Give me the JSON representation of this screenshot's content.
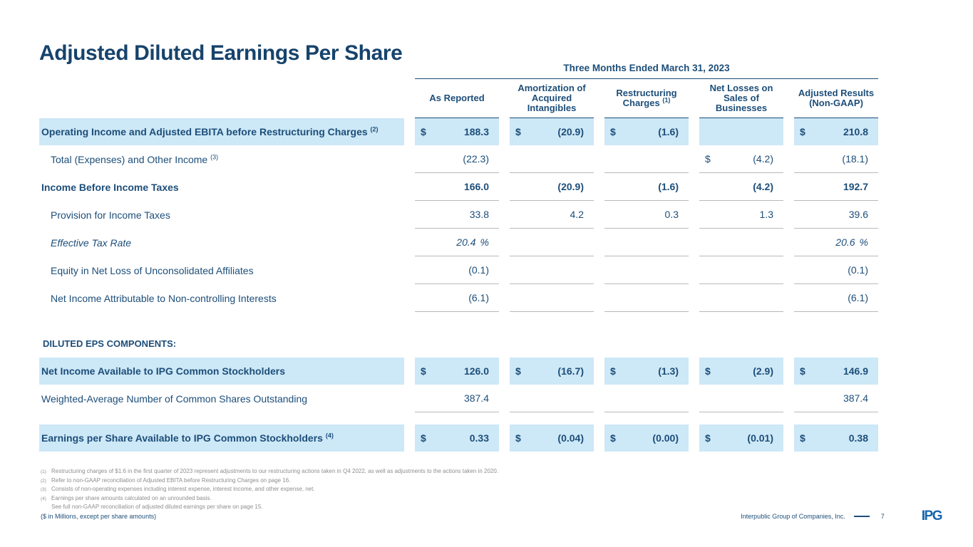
{
  "slide": {
    "title": "Adjusted Diluted Earnings Per Share"
  },
  "table": {
    "period_header": "Three Months Ended March 31, 2023",
    "columns": [
      {
        "label": "As Reported",
        "sup": ""
      },
      {
        "label": "Amortization of Acquired Intangibles",
        "sup": ""
      },
      {
        "label": "Restructuring Charges",
        "sup": "(1)"
      },
      {
        "label": "Net Losses on Sales of Businesses",
        "sup": ""
      },
      {
        "label": "Adjusted Results (Non-GAAP)",
        "sup": ""
      }
    ],
    "rows": [
      {
        "type": "data",
        "label": "Operating Income and Adjusted EBITA before Restructuring Charges",
        "sup": "(2)",
        "indent": false,
        "bold": true,
        "italic": false,
        "highlight": true,
        "underline": false,
        "cells": [
          {
            "d": "$",
            "v": "188.3"
          },
          {
            "d": "$",
            "v": "(20.9)"
          },
          {
            "d": "$",
            "v": "(1.6)"
          },
          {
            "d": "",
            "v": ""
          },
          {
            "d": "$",
            "v": "210.8"
          }
        ]
      },
      {
        "type": "data",
        "label": "Total (Expenses) and Other Income",
        "sup": "(3)",
        "indent": true,
        "bold": false,
        "italic": false,
        "highlight": false,
        "underline": true,
        "cells": [
          {
            "d": "",
            "v": "(22.3)"
          },
          {
            "d": "",
            "v": ""
          },
          {
            "d": "",
            "v": ""
          },
          {
            "d": "$",
            "v": "(4.2)"
          },
          {
            "d": "",
            "v": "(18.1)"
          }
        ]
      },
      {
        "type": "data",
        "label": "Income Before Income Taxes",
        "sup": "",
        "indent": false,
        "bold": true,
        "italic": false,
        "highlight": false,
        "underline": true,
        "cells": [
          {
            "d": "",
            "v": "166.0"
          },
          {
            "d": "",
            "v": "(20.9)"
          },
          {
            "d": "",
            "v": "(1.6)"
          },
          {
            "d": "",
            "v": "(4.2)"
          },
          {
            "d": "",
            "v": "192.7"
          }
        ]
      },
      {
        "type": "data",
        "label": "Provision for Income Taxes",
        "sup": "",
        "indent": true,
        "bold": false,
        "italic": false,
        "highlight": false,
        "underline": true,
        "cells": [
          {
            "d": "",
            "v": "33.8"
          },
          {
            "d": "",
            "v": "4.2"
          },
          {
            "d": "",
            "v": "0.3"
          },
          {
            "d": "",
            "v": "1.3"
          },
          {
            "d": "",
            "v": "39.6"
          }
        ]
      },
      {
        "type": "data",
        "label": "Effective Tax Rate",
        "sup": "",
        "indent": true,
        "bold": false,
        "italic": true,
        "highlight": false,
        "underline": true,
        "cells": [
          {
            "d": "",
            "v": "20.4",
            "s": "%"
          },
          {
            "d": "",
            "v": ""
          },
          {
            "d": "",
            "v": ""
          },
          {
            "d": "",
            "v": ""
          },
          {
            "d": "",
            "v": "20.6",
            "s": "%"
          }
        ]
      },
      {
        "type": "data",
        "label": "Equity in Net Loss of Unconsolidated Affiliates",
        "sup": "",
        "indent": true,
        "bold": false,
        "italic": false,
        "highlight": false,
        "underline": true,
        "cells": [
          {
            "d": "",
            "v": "(0.1)"
          },
          {
            "d": "",
            "v": ""
          },
          {
            "d": "",
            "v": ""
          },
          {
            "d": "",
            "v": ""
          },
          {
            "d": "",
            "v": "(0.1)"
          }
        ]
      },
      {
        "type": "data",
        "label": "Net Income Attributable to Non-controlling Interests",
        "sup": "",
        "indent": true,
        "bold": false,
        "italic": false,
        "highlight": false,
        "underline": true,
        "cells": [
          {
            "d": "",
            "v": "(6.1)"
          },
          {
            "d": "",
            "v": ""
          },
          {
            "d": "",
            "v": ""
          },
          {
            "d": "",
            "v": ""
          },
          {
            "d": "",
            "v": "(6.1)"
          }
        ]
      },
      {
        "type": "section",
        "label": "DILUTED EPS COMPONENTS:"
      },
      {
        "type": "data",
        "label": "Net Income Available to IPG Common Stockholders",
        "sup": "",
        "indent": false,
        "bold": true,
        "italic": false,
        "highlight": true,
        "underline": false,
        "cells": [
          {
            "d": "$",
            "v": "126.0"
          },
          {
            "d": "$",
            "v": "(16.7)"
          },
          {
            "d": "$",
            "v": "(1.3)"
          },
          {
            "d": "$",
            "v": "(2.9)"
          },
          {
            "d": "$",
            "v": "146.9"
          }
        ]
      },
      {
        "type": "data",
        "label": "Weighted-Average Number of Common Shares Outstanding",
        "sup": "",
        "indent": false,
        "bold": false,
        "italic": false,
        "highlight": false,
        "underline": true,
        "cells": [
          {
            "d": "",
            "v": "387.4"
          },
          {
            "d": "",
            "v": ""
          },
          {
            "d": "",
            "v": ""
          },
          {
            "d": "",
            "v": ""
          },
          {
            "d": "",
            "v": "387.4"
          }
        ]
      },
      {
        "type": "spacer"
      },
      {
        "type": "data",
        "label": "Earnings per Share Available to IPG Common Stockholders",
        "sup": "(4)",
        "indent": false,
        "bold": true,
        "italic": false,
        "highlight": true,
        "underline": false,
        "cells": [
          {
            "d": "$",
            "v": "0.33"
          },
          {
            "d": "$",
            "v": "(0.04)"
          },
          {
            "d": "$",
            "v": "(0.00)"
          },
          {
            "d": "$",
            "v": "(0.01)"
          },
          {
            "d": "$",
            "v": "0.38"
          }
        ]
      }
    ]
  },
  "footnotes": [
    {
      "sup": "(1)",
      "text": "Restructuring charges of $1.6 in the first quarter of 2023 represent adjustments to our restructuring actions taken in Q4 2022, as well as adjustments to the actions taken in 2020."
    },
    {
      "sup": "(2)",
      "text": "Refer to non-GAAP reconciliation of Adjusted EBITA before Restructuring Charges on page 16."
    },
    {
      "sup": "(3)",
      "text": "Consists of non-operating expenses including interest expense, interest income, and other expense, net."
    },
    {
      "sup": "(4)",
      "text": "Earnings per share amounts calculated on an unrounded basis."
    },
    {
      "sup": "",
      "text": "See full non-GAAP reconciliation of adjusted diluted earnings per share on page 15."
    }
  ],
  "footer": {
    "units_note": "($ in Millions, except per share amounts)",
    "company": "Interpublic Group of Companies, Inc.",
    "page_number": "7",
    "logo_text": "IPG"
  },
  "colors": {
    "navy_text": "#1d4e79",
    "title_navy": "#16436b",
    "highlight_blue": "#cde8f7",
    "row_line_gray": "#b9b9b9",
    "footnote_gray": "#8e8e8e",
    "logo_blue": "#1565ad"
  }
}
